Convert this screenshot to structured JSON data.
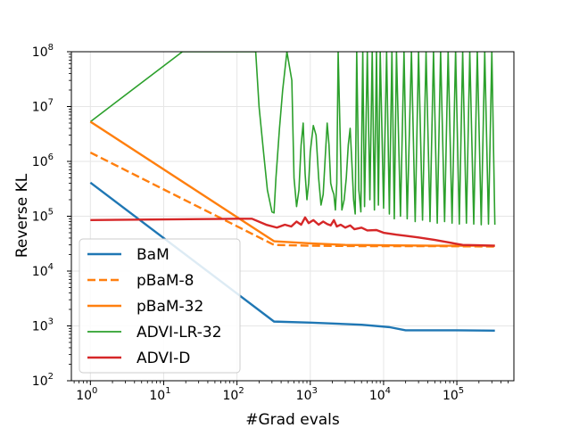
{
  "chart_data": {
    "type": "line",
    "title": "",
    "xlabel": "#Grad evals",
    "ylabel": "Reverse KL",
    "x_scale": "log",
    "y_scale": "log",
    "xlim": [
      0.55,
      600000
    ],
    "ylim": [
      100,
      100000000
    ],
    "x_ticks": [
      {
        "value": 1,
        "base": "10",
        "exp": "0"
      },
      {
        "value": 10,
        "base": "10",
        "exp": "1"
      },
      {
        "value": 100,
        "base": "10",
        "exp": "2"
      },
      {
        "value": 1000,
        "base": "10",
        "exp": "3"
      },
      {
        "value": 10000,
        "base": "10",
        "exp": "4"
      },
      {
        "value": 100000,
        "base": "10",
        "exp": "5"
      }
    ],
    "y_ticks": [
      {
        "value": 100,
        "base": "10",
        "exp": "2"
      },
      {
        "value": 1000,
        "base": "10",
        "exp": "3"
      },
      {
        "value": 10000,
        "base": "10",
        "exp": "4"
      },
      {
        "value": 100000,
        "base": "10",
        "exp": "5"
      },
      {
        "value": 1000000,
        "base": "10",
        "exp": "6"
      },
      {
        "value": 10000000,
        "base": "10",
        "exp": "7"
      },
      {
        "value": 100000000,
        "base": "10",
        "exp": "8"
      }
    ],
    "grid": true,
    "legend_position": "lower-left",
    "series": [
      {
        "name": "BaM",
        "color": "#1f77b4",
        "dash": "solid",
        "points": [
          [
            1,
            410000
          ],
          [
            320,
            1200
          ],
          [
            1000,
            1150
          ],
          [
            5000,
            1050
          ],
          [
            12000,
            950
          ],
          [
            20000,
            830
          ],
          [
            100000,
            830
          ],
          [
            330000,
            820
          ]
        ]
      },
      {
        "name": "pBaM-8",
        "color": "#ff7f0e",
        "dash": "dashed",
        "points": [
          [
            1,
            1450000
          ],
          [
            320,
            30000
          ],
          [
            1000,
            29000
          ],
          [
            5000,
            28500
          ],
          [
            50000,
            28500
          ],
          [
            330000,
            28000
          ]
        ]
      },
      {
        "name": "pBaM-32",
        "color": "#ff7f0e",
        "dash": "solid",
        "points": [
          [
            1,
            5300000
          ],
          [
            320,
            35000
          ],
          [
            1000,
            32000
          ],
          [
            3000,
            30000
          ],
          [
            10000,
            29500
          ],
          [
            50000,
            29000
          ],
          [
            330000,
            29000
          ]
        ]
      },
      {
        "name": "ADVI-LR-32",
        "color": "#2ca02c",
        "dash": "solid",
        "points": [
          [
            1,
            5300000
          ],
          [
            18,
            100000000
          ],
          [
            180,
            100000000
          ],
          [
            200,
            10000000
          ],
          [
            230,
            1500000
          ],
          [
            260,
            300000
          ],
          [
            300,
            120000
          ],
          [
            320,
            115000
          ],
          [
            340,
            500000
          ],
          [
            380,
            4000000
          ],
          [
            420,
            20000000
          ],
          [
            480,
            100000000
          ],
          [
            560,
            30000000
          ],
          [
            600,
            500000
          ],
          [
            650,
            150000
          ],
          [
            700,
            300000
          ],
          [
            750,
            2000000
          ],
          [
            800,
            5000000
          ],
          [
            850,
            600000
          ],
          [
            900,
            200000
          ],
          [
            950,
            400000
          ],
          [
            1000,
            1500000
          ],
          [
            1100,
            4500000
          ],
          [
            1200,
            3000000
          ],
          [
            1300,
            500000
          ],
          [
            1400,
            160000
          ],
          [
            1500,
            250000
          ],
          [
            1600,
            1200000
          ],
          [
            1700,
            5000000
          ],
          [
            1800,
            2000000
          ],
          [
            1900,
            400000
          ],
          [
            2000,
            300000
          ],
          [
            2100,
            250000
          ],
          [
            2200,
            130000
          ],
          [
            2300,
            400000
          ],
          [
            2400,
            100000000
          ],
          [
            2500,
            10000000
          ],
          [
            2700,
            130000
          ],
          [
            2900,
            200000
          ],
          [
            3100,
            500000
          ],
          [
            3300,
            2000000
          ],
          [
            3500,
            4000000
          ],
          [
            3700,
            900000
          ],
          [
            3900,
            200000
          ],
          [
            4100,
            110000
          ],
          [
            4300,
            100000000
          ],
          [
            4600,
            300000
          ],
          [
            4900,
            120000
          ],
          [
            5200,
            100000000
          ],
          [
            5500,
            150000
          ],
          [
            6000,
            100000000
          ],
          [
            6500,
            200000
          ],
          [
            7000,
            100000000
          ],
          [
            7500,
            130000
          ],
          [
            8000,
            100000000
          ],
          [
            8500,
            160000
          ],
          [
            9000,
            100000000
          ],
          [
            10000,
            140000
          ],
          [
            11000,
            100000000
          ],
          [
            12000,
            110000
          ],
          [
            13000,
            100000000
          ],
          [
            14000,
            90000
          ],
          [
            15000,
            100000000
          ],
          [
            17000,
            100000
          ],
          [
            19000,
            100000000
          ],
          [
            21000,
            90000
          ],
          [
            24000,
            100000000
          ],
          [
            27000,
            80000
          ],
          [
            30000,
            100000000
          ],
          [
            34000,
            85000
          ],
          [
            38000,
            100000000
          ],
          [
            43000,
            80000
          ],
          [
            48000,
            100000000
          ],
          [
            54000,
            75000
          ],
          [
            60000,
            100000000
          ],
          [
            68000,
            80000
          ],
          [
            76000,
            100000000
          ],
          [
            86000,
            75000
          ],
          [
            96000,
            100000000
          ],
          [
            108000,
            72000
          ],
          [
            120000,
            100000000
          ],
          [
            135000,
            75000
          ],
          [
            150000,
            100000000
          ],
          [
            170000,
            72000
          ],
          [
            190000,
            100000000
          ],
          [
            215000,
            70000
          ],
          [
            240000,
            100000000
          ],
          [
            270000,
            72000
          ],
          [
            300000,
            100000000
          ],
          [
            330000,
            70000
          ]
        ]
      },
      {
        "name": "ADVI-D",
        "color": "#d62728",
        "dash": "solid",
        "points": [
          [
            1,
            85000
          ],
          [
            100,
            90000
          ],
          [
            160,
            90000
          ],
          [
            250,
            70000
          ],
          [
            350,
            62000
          ],
          [
            450,
            70000
          ],
          [
            550,
            65000
          ],
          [
            650,
            80000
          ],
          [
            750,
            70000
          ],
          [
            850,
            95000
          ],
          [
            950,
            75000
          ],
          [
            1100,
            85000
          ],
          [
            1300,
            70000
          ],
          [
            1500,
            80000
          ],
          [
            1700,
            72000
          ],
          [
            1900,
            68000
          ],
          [
            2100,
            85000
          ],
          [
            2300,
            65000
          ],
          [
            2600,
            70000
          ],
          [
            3000,
            62000
          ],
          [
            3500,
            68000
          ],
          [
            4000,
            58000
          ],
          [
            5000,
            62000
          ],
          [
            6000,
            55000
          ],
          [
            8000,
            56000
          ],
          [
            10000,
            50000
          ],
          [
            15000,
            46000
          ],
          [
            20000,
            44000
          ],
          [
            30000,
            41000
          ],
          [
            50000,
            37000
          ],
          [
            80000,
            33000
          ],
          [
            120000,
            30000
          ],
          [
            200000,
            29500
          ],
          [
            330000,
            29000
          ]
        ]
      }
    ]
  }
}
